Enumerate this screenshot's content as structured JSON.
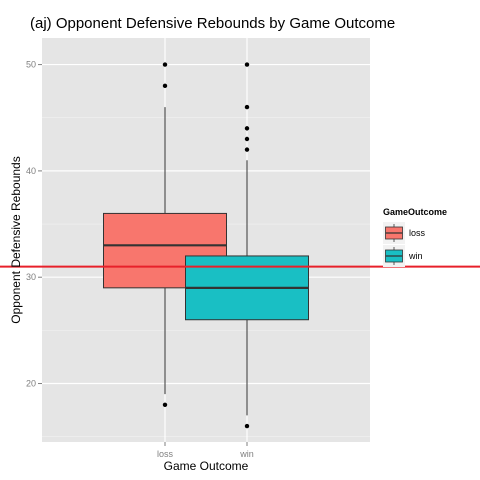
{
  "chart_data": {
    "type": "box",
    "title": "(aj) Opponent Defensive Rebounds by Game Outcome",
    "xlabel": "Game Outcome",
    "ylabel": "Opponent Defensive Rebounds",
    "categories": [
      "loss",
      "win"
    ],
    "ylim": [
      14.5,
      52.5
    ],
    "yticks": [
      20,
      30,
      40,
      50
    ],
    "grid": true,
    "legend": {
      "title": "GameOutcome",
      "placement": "right",
      "entries": [
        "loss",
        "win"
      ]
    },
    "reference_line": {
      "y": 31,
      "color": "#e8202a"
    },
    "boxes": [
      {
        "category": "loss",
        "min": 19,
        "q1": 29,
        "median": 33,
        "q3": 36,
        "max": 46,
        "outliers": [
          18,
          48,
          50
        ],
        "color": "#f8766d"
      },
      {
        "category": "win",
        "min": 17,
        "q1": 26,
        "median": 29,
        "q3": 32,
        "max": 41,
        "outliers": [
          16,
          42,
          43,
          44,
          46,
          50
        ],
        "color": "#19bfc4"
      }
    ]
  }
}
